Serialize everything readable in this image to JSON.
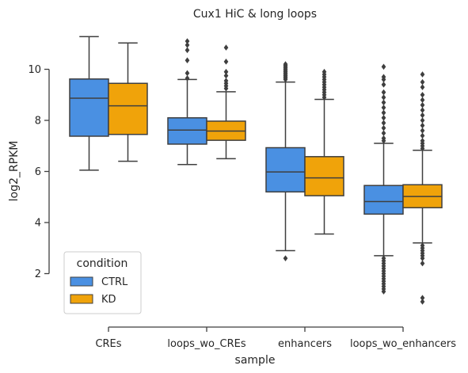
{
  "chart_data": {
    "type": "box",
    "title": "Cux1 HiC & long loops",
    "xlabel": "sample",
    "ylabel": "log2_RPKM",
    "ylim": [
      0,
      11.3
    ],
    "yticks": [
      2,
      4,
      6,
      8,
      10
    ],
    "categories": [
      "CREs",
      "loops_wo_CREs",
      "enhancers",
      "loops_wo_enhancers"
    ],
    "legend": {
      "title": "condition",
      "placement": "bottom-left"
    },
    "series": [
      {
        "name": "CTRL",
        "color": "#4a90e2",
        "boxes": [
          {
            "whislo": 6.05,
            "q1": 7.38,
            "med": 8.87,
            "q3": 9.62,
            "whishi": 11.28,
            "fliers": []
          },
          {
            "whislo": 6.27,
            "q1": 7.07,
            "med": 7.62,
            "q3": 8.1,
            "whishi": 9.6,
            "fliers": [
              9.65,
              9.85,
              10.35,
              10.75,
              10.95,
              11.1
            ]
          },
          {
            "whislo": 2.9,
            "q1": 5.2,
            "med": 5.98,
            "q3": 6.93,
            "whishi": 9.5,
            "fliers": [
              2.6,
              9.6,
              9.65,
              9.7,
              9.75,
              9.8,
              9.85,
              9.9,
              9.95,
              10.0,
              10.05,
              10.1,
              10.15,
              10.2
            ]
          },
          {
            "whislo": 2.7,
            "q1": 4.33,
            "med": 4.82,
            "q3": 5.45,
            "whishi": 7.1,
            "fliers": [
              1.3,
              1.4,
              1.5,
              1.6,
              1.7,
              1.8,
              1.9,
              2.0,
              2.1,
              2.2,
              2.3,
              2.4,
              2.5,
              2.6,
              7.2,
              7.3,
              7.5,
              7.7,
              7.9,
              8.1,
              8.3,
              8.5,
              8.7,
              8.9,
              9.1,
              9.4,
              9.6,
              9.7,
              10.1
            ]
          }
        ]
      },
      {
        "name": "KD",
        "color": "#f0a30a",
        "boxes": [
          {
            "whislo": 6.4,
            "q1": 7.45,
            "med": 8.57,
            "q3": 9.45,
            "whishi": 11.03,
            "fliers": []
          },
          {
            "whislo": 6.5,
            "q1": 7.22,
            "med": 7.58,
            "q3": 7.97,
            "whishi": 9.12,
            "fliers": [
              9.25,
              9.35,
              9.45,
              9.55,
              9.75,
              9.9,
              10.3,
              10.85
            ]
          },
          {
            "whislo": 3.55,
            "q1": 5.05,
            "med": 5.75,
            "q3": 6.58,
            "whishi": 8.82,
            "fliers": [
              8.9,
              9.0,
              9.1,
              9.2,
              9.3,
              9.4,
              9.5,
              9.6,
              9.7,
              9.8,
              9.9
            ]
          },
          {
            "whislo": 3.2,
            "q1": 4.58,
            "med": 5.02,
            "q3": 5.48,
            "whishi": 6.83,
            "fliers": [
              0.9,
              1.05,
              2.4,
              2.6,
              2.7,
              2.8,
              2.9,
              3.0,
              3.1,
              6.9,
              7.0,
              7.1,
              7.2,
              7.4,
              7.6,
              7.8,
              8.0,
              8.2,
              8.4,
              8.6,
              8.8,
              9.0,
              9.3,
              9.5,
              9.8
            ]
          }
        ]
      }
    ]
  }
}
